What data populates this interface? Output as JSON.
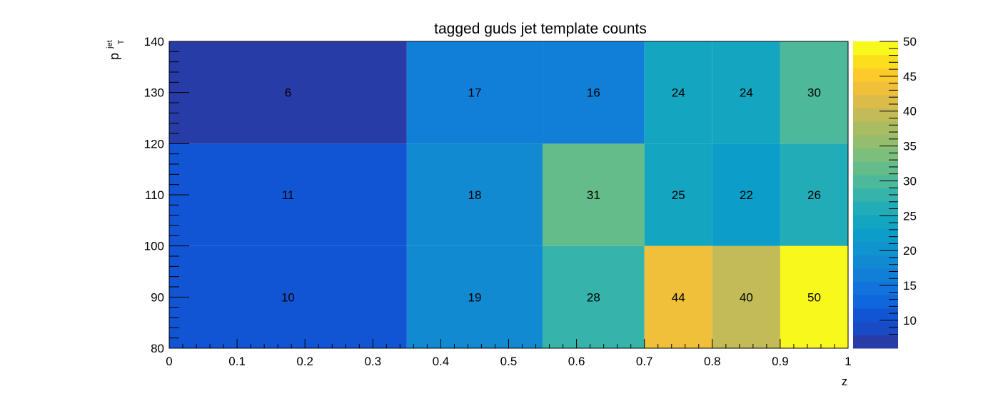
{
  "chart_data": {
    "type": "heatmap",
    "title": "tagged guds jet template counts",
    "xlabel": "z",
    "ylabel_main": "p",
    "ylabel_sup": "jet",
    "ylabel_sub": "T",
    "xlim": [
      0,
      1
    ],
    "ylim": [
      80,
      140
    ],
    "zlim": [
      6,
      50
    ],
    "x_edges": [
      0,
      0.35,
      0.55,
      0.7,
      0.8,
      0.9,
      1.0
    ],
    "y_edges": [
      80,
      100,
      120,
      140
    ],
    "values": [
      [
        10,
        19,
        28,
        44,
        40,
        50
      ],
      [
        11,
        18,
        31,
        25,
        22,
        26
      ],
      [
        6,
        17,
        16,
        24,
        24,
        30
      ]
    ],
    "x_ticks": [
      0,
      0.1,
      0.2,
      0.3,
      0.4,
      0.5,
      0.6,
      0.7,
      0.8,
      0.9,
      1
    ],
    "x_tick_labels": [
      "0",
      "0.1",
      "0.2",
      "0.3",
      "0.4",
      "0.5",
      "0.6",
      "0.7",
      "0.8",
      "0.9",
      "1"
    ],
    "y_ticks": [
      80,
      90,
      100,
      110,
      120,
      130,
      140
    ],
    "y_tick_labels": [
      "80",
      "90",
      "100",
      "110",
      "120",
      "130",
      "140"
    ],
    "z_ticks": [
      10,
      15,
      20,
      25,
      30,
      35,
      40,
      45,
      50
    ],
    "z_tick_labels": [
      "10",
      "15",
      "20",
      "25",
      "30",
      "35",
      "40",
      "45",
      "50"
    ],
    "palette": [
      "#283ca8",
      "#1a4bc6",
      "#1255d4",
      "#0f66dd",
      "#1273dc",
      "#117fd8",
      "#128ad2",
      "#1094cf",
      "#0c9dc9",
      "#14a5c1",
      "#22acb8",
      "#36b3aa",
      "#4eb99a",
      "#63bc8a",
      "#7cbe7b",
      "#94be6e",
      "#aabc62",
      "#c3bb57",
      "#dbbb49",
      "#f0c03a",
      "#fcca2b",
      "#fbde1c",
      "#f9f81d"
    ]
  }
}
